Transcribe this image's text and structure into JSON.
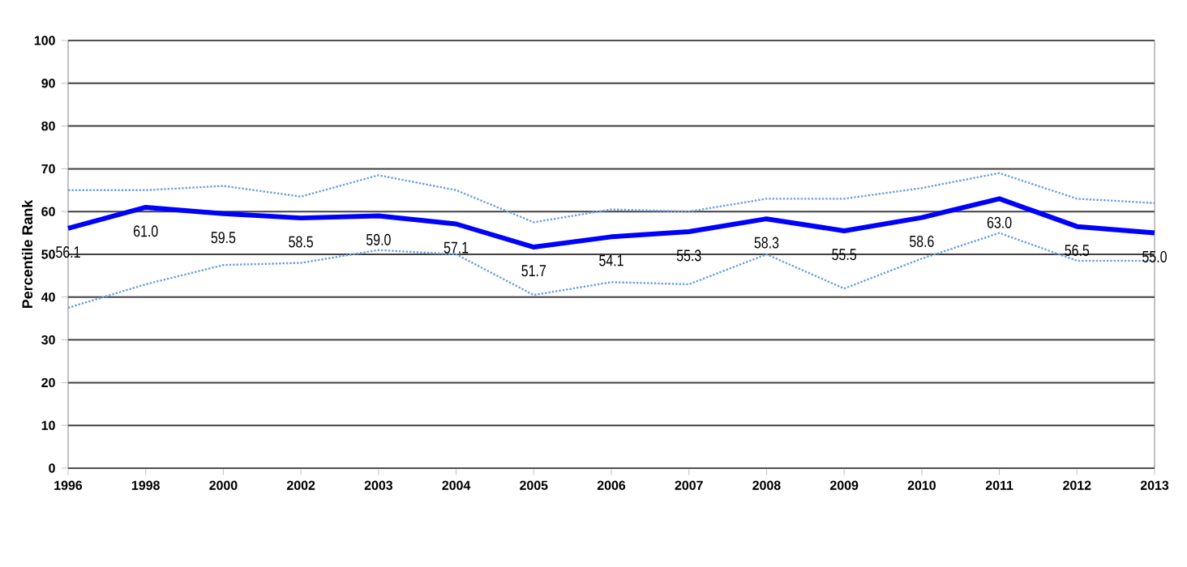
{
  "chart_data": {
    "type": "line",
    "ylabel": "Percentile Rank",
    "categories": [
      "1996",
      "1998",
      "2000",
      "2002",
      "2003",
      "2004",
      "2005",
      "2006",
      "2007",
      "2008",
      "2009",
      "2010",
      "2011",
      "2012",
      "2013"
    ],
    "series": [
      {
        "color": "#6fa0dc",
        "line_style": "dotted",
        "values": [
          65,
          65,
          66,
          63.5,
          68.5,
          65,
          57.5,
          60.5,
          60,
          63,
          63,
          65.5,
          69,
          63,
          62
        ]
      },
      {
        "color": "#6fa0dc",
        "line_style": "dotted",
        "values": [
          37.5,
          43,
          47.5,
          48,
          51,
          50,
          40.5,
          43.5,
          43,
          50,
          42,
          49,
          55,
          48.5,
          48.5
        ]
      },
      {
        "color": "#0000ff",
        "values": [
          56.1,
          61.0,
          59.5,
          58.5,
          59.0,
          57.1,
          51.7,
          54.1,
          55.3,
          58.3,
          55.5,
          58.6,
          63.0,
          56.5,
          55.0
        ],
        "value_labels": [
          "56.1",
          "61.0",
          "59.5",
          "58.5",
          "59.0",
          "57.1",
          "51.7",
          "54.1",
          "55.3",
          "58.3",
          "55.5",
          "58.6",
          "63.0",
          "56.5",
          "55.0"
        ]
      }
    ],
    "ylim": [
      0,
      100
    ],
    "yticks": [
      0,
      10,
      20,
      30,
      40,
      50,
      60,
      70,
      80,
      90,
      100
    ],
    "grid": "y",
    "marker": "none",
    "line_style": "solid"
  }
}
